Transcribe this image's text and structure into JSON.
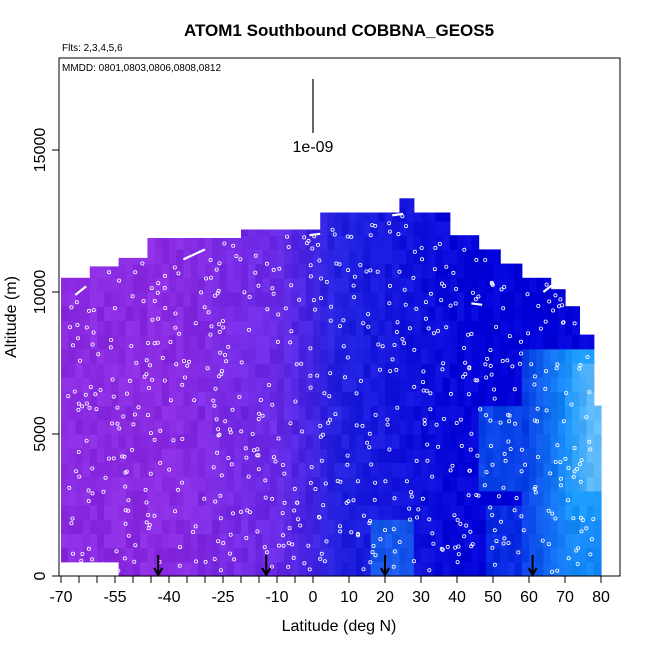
{
  "chart_data": {
    "type": "heatmap",
    "title": "ATOM1 Southbound COBBNA_GEOS5",
    "subtitle_flights": "Flts: 2,3,4,5,6",
    "subtitle_dates": "MMDD: 0801,0803,0806,0808,0812",
    "xlabel": "Latitude (deg N)",
    "ylabel": "Altitude (m)",
    "xlim": [
      -70,
      82
    ],
    "ylim": [
      0,
      17500
    ],
    "x_ticks": [
      -70,
      -55,
      -40,
      -25,
      -10,
      0,
      10,
      20,
      30,
      40,
      50,
      60,
      70,
      80
    ],
    "x_tick_labels": [
      "-70",
      "-55",
      "-40",
      "-25",
      "-10",
      "0",
      "10",
      "20",
      "30",
      "40",
      "50",
      "60",
      "70",
      "80"
    ],
    "x_minor_ticks": [
      -65,
      -60,
      -50,
      -45,
      -35,
      -30,
      -20,
      -15,
      -5
    ],
    "y_ticks": [
      0,
      5000,
      10000,
      15000
    ],
    "y_tick_labels": [
      "0",
      "5000",
      "10000",
      "15000"
    ],
    "scale_marker": {
      "label": "1e-09",
      "x": 0,
      "y_top": 17500,
      "y_bottom": 15600
    },
    "arrow_markers_lat": [
      -43,
      -13,
      20,
      61
    ],
    "grid": false,
    "colors": {
      "purple": "#8a2be2",
      "violet": "#6a2ae6",
      "blue": "#2020e0",
      "deep_blue": "#0000d8",
      "light_blue": "#1aa8ff",
      "cyan_light": "#bfe8ff",
      "points": "#ffffff"
    },
    "ceiling_profile": [
      {
        "lat": -70,
        "alt": 10500
      },
      {
        "lat": -62,
        "alt": 10900
      },
      {
        "lat": -55,
        "alt": 11200
      },
      {
        "lat": -46,
        "alt": 11900
      },
      {
        "lat": -30,
        "alt": 11900
      },
      {
        "lat": -20,
        "alt": 12200
      },
      {
        "lat": 1,
        "alt": 12800
      },
      {
        "lat": 24,
        "alt": 13300
      },
      {
        "lat": 27,
        "alt": 12800
      },
      {
        "lat": 37,
        "alt": 12000
      },
      {
        "lat": 46,
        "alt": 11500
      },
      {
        "lat": 51,
        "alt": 11000
      },
      {
        "lat": 58,
        "alt": 10500
      },
      {
        "lat": 65,
        "alt": 10100
      },
      {
        "lat": 70,
        "alt": 9500
      },
      {
        "lat": 74,
        "alt": 8500
      },
      {
        "lat": 77,
        "alt": 6000
      },
      {
        "lat": 80,
        "alt": 5900
      }
    ]
  }
}
